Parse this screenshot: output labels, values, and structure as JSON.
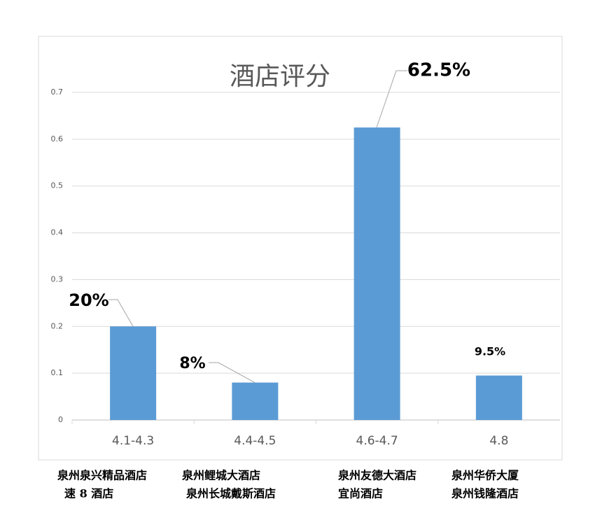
{
  "chart_data": {
    "type": "bar",
    "title": "酒店评分",
    "categories": [
      "4.1-4.3",
      "4.4-4.5",
      "4.6-4.7",
      "4.8"
    ],
    "values": [
      0.2,
      0.08,
      0.625,
      0.095
    ],
    "value_labels": [
      "20%",
      "8%",
      "62.5%",
      "9.5%"
    ],
    "color": "#5b9bd5",
    "ylim": [
      0,
      0.7
    ],
    "yticks": [
      0,
      0.1,
      0.2,
      0.3,
      0.4,
      0.5,
      0.6,
      0.7
    ],
    "grid": true,
    "hotels": [
      [
        "泉州泉兴精品酒店",
        "速 8 酒店"
      ],
      [
        "泉州鲤城大酒店",
        "泉州长城戴斯酒店"
      ],
      [
        "泉州友德大酒店",
        "宜尚酒店"
      ],
      [
        "泉州华侨大厦",
        "泉州钱隆酒店"
      ]
    ]
  }
}
